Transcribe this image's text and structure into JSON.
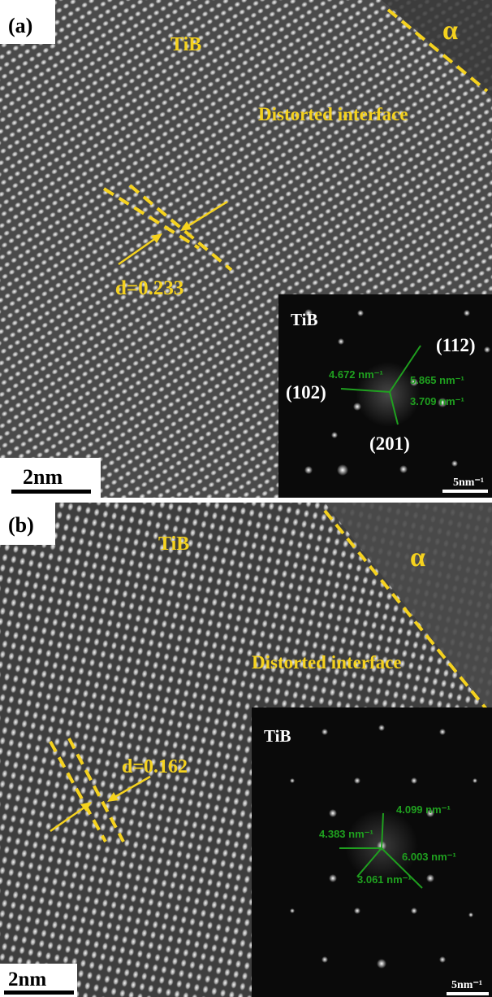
{
  "panels": [
    {
      "label": "(a)",
      "phase_matrix": "TiB",
      "phase_alpha": "α",
      "interface": "Distorted interface",
      "spacing": "d=0.233",
      "scale_bar": "2nm",
      "fft": {
        "title": "TiB",
        "planes": [
          "(112)",
          "(102)",
          "(201)"
        ],
        "distances": [
          "4.672 nm⁻¹",
          "5.865 nm⁻¹",
          "3.709 nm⁻¹"
        ],
        "scale_bar": "5nm⁻¹"
      }
    },
    {
      "label": "(b)",
      "phase_matrix": "TiB",
      "phase_alpha": "α",
      "interface": "Distorted interface",
      "spacing": "d=0.162",
      "scale_bar": "2nm",
      "fft": {
        "title": "TiB",
        "distances": [
          "4.383 nm⁻¹",
          "4.099 nm⁻¹",
          "6.003 nm⁻¹",
          "3.061 nm⁻¹"
        ],
        "scale_bar": "5nm⁻¹"
      }
    }
  ]
}
